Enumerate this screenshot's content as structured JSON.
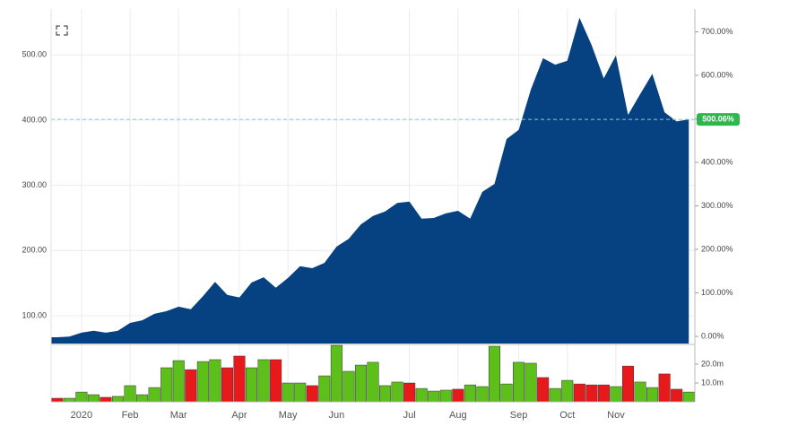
{
  "chart_data": [
    {
      "type": "area",
      "color": "#064182",
      "values": [
        67,
        68,
        74,
        77,
        74,
        77,
        89,
        93,
        103,
        107,
        114,
        110,
        130,
        152,
        132,
        128,
        151,
        159,
        143,
        158,
        176,
        173,
        181,
        206,
        218,
        240,
        253,
        260,
        273,
        275,
        249,
        250,
        257,
        261,
        249,
        290,
        302,
        371,
        385,
        447,
        495,
        485,
        491,
        557,
        515,
        464,
        499,
        408,
        440,
        471,
        412,
        398,
        401
      ],
      "ylim": [
        57.4,
        570.4
      ],
      "yticks": [
        {
          "value": 100,
          "label": "100.00"
        },
        {
          "value": 200,
          "label": "200.00"
        },
        {
          "value": 300,
          "label": "300.00"
        },
        {
          "value": 400,
          "label": "400.00"
        },
        {
          "value": 500,
          "label": "500.00"
        }
      ],
      "y2lim": [
        -16.5,
        752.6
      ],
      "y2ticks": [
        {
          "value": 0,
          "label": "0.00%"
        },
        {
          "value": 100,
          "label": "100.00%"
        },
        {
          "value": 200,
          "label": "200.00%"
        },
        {
          "value": 300,
          "label": "300.00%"
        },
        {
          "value": 400,
          "label": "400.00%"
        },
        {
          "value": 500,
          "label": "500.00%"
        },
        {
          "value": 600,
          "label": "600.00%"
        },
        {
          "value": 700,
          "label": "700.00%"
        }
      ],
      "last_label": "500.06%",
      "last_label_color": "#2db84d",
      "grid": true
    },
    {
      "type": "bar",
      "categories": [
        null,
        null,
        "2020",
        null,
        null,
        null,
        "Feb",
        null,
        null,
        null,
        "Mar",
        null,
        null,
        null,
        null,
        "Apr",
        null,
        null,
        null,
        "May",
        null,
        null,
        null,
        "Jun",
        null,
        null,
        null,
        null,
        null,
        "Jul",
        null,
        null,
        null,
        "Aug",
        null,
        null,
        null,
        null,
        "Sep",
        null,
        null,
        null,
        "Oct",
        null,
        null,
        null,
        "Nov",
        null,
        null,
        null,
        null,
        null,
        null
      ],
      "values": [
        1900000,
        1900000,
        5200000,
        3800000,
        2400000,
        2900000,
        8600000,
        3800000,
        7600000,
        18100000,
        21900000,
        17100000,
        21400000,
        22400000,
        18100000,
        24300000,
        18100000,
        22400000,
        22400000,
        10000000,
        10000000,
        8600000,
        13800000,
        30000000,
        16200000,
        19500000,
        21000000,
        8600000,
        10500000,
        10000000,
        7100000,
        5700000,
        6200000,
        6700000,
        9000000,
        8100000,
        29500000,
        9500000,
        21000000,
        20500000,
        12900000,
        7100000,
        11400000,
        9500000,
        9000000,
        9000000,
        8100000,
        19000000,
        10500000,
        7600000,
        14800000,
        6700000,
        5200000
      ],
      "colors": [
        "#e8191a",
        "#5cbf1a",
        "#5cbf1a",
        "#5cbf1a",
        "#e8191a",
        "#5cbf1a",
        "#5cbf1a",
        "#5cbf1a",
        "#5cbf1a",
        "#5cbf1a",
        "#5cbf1a",
        "#e8191a",
        "#5cbf1a",
        "#5cbf1a",
        "#e8191a",
        "#e8191a",
        "#5cbf1a",
        "#5cbf1a",
        "#e8191a",
        "#5cbf1a",
        "#5cbf1a",
        "#e8191a",
        "#5cbf1a",
        "#5cbf1a",
        "#5cbf1a",
        "#5cbf1a",
        "#5cbf1a",
        "#5cbf1a",
        "#5cbf1a",
        "#e8191a",
        "#5cbf1a",
        "#5cbf1a",
        "#5cbf1a",
        "#e8191a",
        "#5cbf1a",
        "#5cbf1a",
        "#5cbf1a",
        "#5cbf1a",
        "#5cbf1a",
        "#5cbf1a",
        "#e8191a",
        "#5cbf1a",
        "#5cbf1a",
        "#e8191a",
        "#e8191a",
        "#e8191a",
        "#5cbf1a",
        "#e8191a",
        "#5cbf1a",
        "#5cbf1a",
        "#e8191a",
        "#e8191a",
        "#5cbf1a"
      ],
      "ylim": [
        0,
        30000000
      ],
      "yticks": [
        {
          "value": 10000000,
          "label": "10.0m"
        },
        {
          "value": 20000000,
          "label": "20.0m"
        }
      ]
    }
  ]
}
